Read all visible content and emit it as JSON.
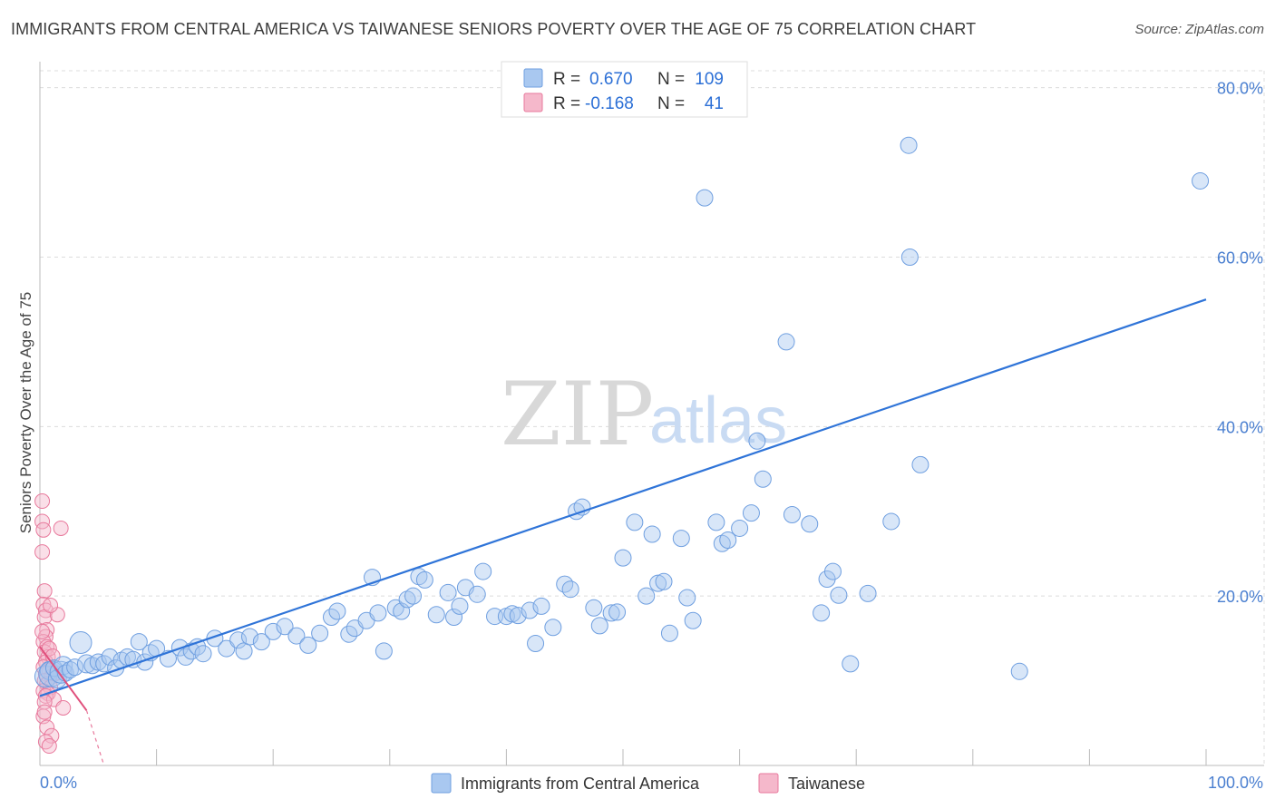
{
  "title": "IMMIGRANTS FROM CENTRAL AMERICA VS TAIWANESE SENIORS POVERTY OVER THE AGE OF 75 CORRELATION CHART",
  "source": "Source: ZipAtlas.com",
  "watermark": {
    "part1": "ZIP",
    "part2": "atlas"
  },
  "colors": {
    "blue_fill": "#a9c8f0",
    "blue_stroke": "#6f9fe0",
    "blue_line": "#2f74d8",
    "pink_fill": "#f5b8cb",
    "pink_stroke": "#e8799c",
    "pink_line": "#e0507c",
    "grid": "#dcdcdc",
    "axis_text": "#4a7fd0"
  },
  "legend": {
    "rows": [
      {
        "r_label": "R =",
        "r_value": "0.670",
        "n_label": "N =",
        "n_value": "109"
      },
      {
        "r_label": "R =",
        "r_value": "-0.168",
        "n_label": "N =",
        "n_value": "41"
      }
    ]
  },
  "chart_data": {
    "type": "scatter",
    "title": "IMMIGRANTS FROM CENTRAL AMERICA VS TAIWANESE SENIORS POVERTY OVER THE AGE OF 75 CORRELATION CHART",
    "xlabel": "",
    "ylabel": "Seniors Poverty Over the Age of 75",
    "xlim": [
      0,
      100
    ],
    "ylim": [
      0,
      82
    ],
    "x_tick_labels": [
      "0.0%",
      "100.0%"
    ],
    "y_ticks": [
      20,
      40,
      60,
      80
    ],
    "y_tick_labels": [
      "20.0%",
      "40.0%",
      "60.0%",
      "80.0%"
    ],
    "legend_position": "bottom-center",
    "series": [
      {
        "name": "Immigrants from Central America",
        "color": "blue",
        "r": 0.67,
        "n": 109,
        "trend": {
          "x": [
            0,
            100
          ],
          "y": [
            8.2,
            55.0
          ]
        },
        "points": [
          [
            0.5,
            10.5,
            12
          ],
          [
            0.8,
            11.2,
            10
          ],
          [
            1.0,
            10.8,
            14
          ],
          [
            1.2,
            11.5,
            9
          ],
          [
            1.5,
            10.2,
            10
          ],
          [
            1.8,
            11.0,
            12
          ],
          [
            2.0,
            11.8,
            10
          ],
          [
            2.2,
            10.9,
            9
          ],
          [
            2.6,
            11.3,
            9
          ],
          [
            3.0,
            11.6,
            9
          ],
          [
            3.5,
            14.5,
            12
          ],
          [
            4.0,
            12.0,
            10
          ],
          [
            4.5,
            11.8,
            9
          ],
          [
            5.0,
            12.2,
            9
          ],
          [
            5.5,
            12.0,
            9
          ],
          [
            6.0,
            12.8,
            9
          ],
          [
            6.5,
            11.5,
            9
          ],
          [
            7.0,
            12.4,
            9
          ],
          [
            7.5,
            12.8,
            9
          ],
          [
            8.0,
            12.5,
            9
          ],
          [
            8.5,
            14.6,
            9
          ],
          [
            9.0,
            12.2,
            9
          ],
          [
            9.5,
            13.3,
            9
          ],
          [
            10.0,
            13.8,
            9
          ],
          [
            11.0,
            12.6,
            9
          ],
          [
            12.0,
            13.9,
            9
          ],
          [
            12.5,
            12.8,
            9
          ],
          [
            13.0,
            13.5,
            9
          ],
          [
            13.5,
            14.0,
            9
          ],
          [
            14.0,
            13.2,
            9
          ],
          [
            15.0,
            15.0,
            9
          ],
          [
            16.0,
            13.8,
            9
          ],
          [
            17.0,
            14.8,
            9
          ],
          [
            17.5,
            13.5,
            9
          ],
          [
            18.0,
            15.2,
            9
          ],
          [
            19.0,
            14.6,
            9
          ],
          [
            20.0,
            15.8,
            9
          ],
          [
            21.0,
            16.4,
            9
          ],
          [
            22.0,
            15.3,
            9
          ],
          [
            23.0,
            14.2,
            9
          ],
          [
            24.0,
            15.6,
            9
          ],
          [
            25.0,
            17.5,
            9
          ],
          [
            25.5,
            18.2,
            9
          ],
          [
            26.5,
            15.5,
            9
          ],
          [
            27.0,
            16.2,
            9
          ],
          [
            28.0,
            17.1,
            9
          ],
          [
            28.5,
            22.2,
            9
          ],
          [
            29.0,
            18.0,
            9
          ],
          [
            29.5,
            13.5,
            9
          ],
          [
            30.5,
            18.6,
            9
          ],
          [
            31.0,
            18.2,
            9
          ],
          [
            31.5,
            19.6,
            9
          ],
          [
            32.0,
            20.0,
            9
          ],
          [
            32.5,
            22.3,
            9
          ],
          [
            33.0,
            21.9,
            9
          ],
          [
            34.0,
            17.8,
            9
          ],
          [
            35.0,
            20.4,
            9
          ],
          [
            35.5,
            17.5,
            9
          ],
          [
            36.0,
            18.8,
            9
          ],
          [
            36.5,
            21.0,
            9
          ],
          [
            37.5,
            20.2,
            9
          ],
          [
            38.0,
            22.9,
            9
          ],
          [
            39.0,
            17.6,
            9
          ],
          [
            40.0,
            17.6,
            9
          ],
          [
            40.5,
            17.9,
            9
          ],
          [
            41.0,
            17.7,
            9
          ],
          [
            42.0,
            18.3,
            9
          ],
          [
            42.5,
            14.4,
            9
          ],
          [
            43.0,
            18.8,
            9
          ],
          [
            44.0,
            16.3,
            9
          ],
          [
            45.0,
            21.4,
            9
          ],
          [
            45.5,
            20.8,
            9
          ],
          [
            46.0,
            30.0,
            9
          ],
          [
            46.5,
            30.5,
            9
          ],
          [
            47.5,
            18.6,
            9
          ],
          [
            48.0,
            16.5,
            9
          ],
          [
            49.0,
            18.0,
            9
          ],
          [
            49.5,
            18.1,
            9
          ],
          [
            50.0,
            24.5,
            9
          ],
          [
            51.0,
            28.7,
            9
          ],
          [
            52.0,
            20.0,
            9
          ],
          [
            52.5,
            27.3,
            9
          ],
          [
            53.0,
            21.5,
            9
          ],
          [
            53.5,
            21.7,
            9
          ],
          [
            54.0,
            15.6,
            9
          ],
          [
            55.0,
            26.8,
            9
          ],
          [
            55.5,
            19.8,
            9
          ],
          [
            56.0,
            17.1,
            9
          ],
          [
            57.0,
            67.0,
            9
          ],
          [
            58.0,
            28.7,
            9
          ],
          [
            58.5,
            26.2,
            9
          ],
          [
            59.0,
            26.6,
            9
          ],
          [
            60.0,
            28.0,
            9
          ],
          [
            61.0,
            29.8,
            9
          ],
          [
            61.5,
            38.3,
            9
          ],
          [
            62.0,
            33.8,
            9
          ],
          [
            64.0,
            50.0,
            9
          ],
          [
            64.5,
            29.6,
            9
          ],
          [
            66.0,
            28.5,
            9
          ],
          [
            67.0,
            18.0,
            9
          ],
          [
            67.5,
            22.0,
            9
          ],
          [
            68.0,
            22.9,
            9
          ],
          [
            68.5,
            20.1,
            9
          ],
          [
            69.5,
            12.0,
            9
          ],
          [
            71.0,
            20.3,
            9
          ],
          [
            73.0,
            28.8,
            9
          ],
          [
            74.5,
            73.2,
            9
          ],
          [
            74.6,
            60.0,
            9
          ],
          [
            75.5,
            35.5,
            9
          ],
          [
            84.0,
            11.1,
            9
          ],
          [
            99.5,
            69.0,
            9
          ]
        ]
      },
      {
        "name": "Taiwanese",
        "color": "pink",
        "r": -0.168,
        "n": 41,
        "trend": {
          "x": [
            0,
            4
          ],
          "y": [
            14.0,
            6.5
          ]
        },
        "trend_dashed": {
          "x": [
            4,
            5.5
          ],
          "y": [
            6.5,
            0
          ]
        },
        "points": [
          [
            0.2,
            31.2
          ],
          [
            0.2,
            28.8
          ],
          [
            0.2,
            25.2
          ],
          [
            0.3,
            27.8
          ],
          [
            1.8,
            28.0
          ],
          [
            0.4,
            20.6
          ],
          [
            0.3,
            19.0
          ],
          [
            0.5,
            18.3
          ],
          [
            0.4,
            17.5
          ],
          [
            0.6,
            16.0
          ],
          [
            0.5,
            15.2
          ],
          [
            0.3,
            14.6
          ],
          [
            0.6,
            14.0
          ],
          [
            0.4,
            13.4
          ],
          [
            0.7,
            12.8
          ],
          [
            0.5,
            12.2
          ],
          [
            0.3,
            11.6
          ],
          [
            0.8,
            11.2
          ],
          [
            0.5,
            10.8
          ],
          [
            1.0,
            10.5
          ],
          [
            0.4,
            10.0
          ],
          [
            0.6,
            9.6
          ],
          [
            0.9,
            9.2
          ],
          [
            0.3,
            8.8
          ],
          [
            0.7,
            8.5
          ],
          [
            0.5,
            8.2
          ],
          [
            1.2,
            7.8
          ],
          [
            0.4,
            7.5
          ],
          [
            0.8,
            13.8
          ],
          [
            1.5,
            17.8
          ],
          [
            2.0,
            6.8
          ],
          [
            0.3,
            5.8
          ],
          [
            0.6,
            4.5
          ],
          [
            1.0,
            3.5
          ],
          [
            0.5,
            2.8
          ],
          [
            0.8,
            2.3
          ],
          [
            1.1,
            12.9
          ],
          [
            1.4,
            10.9
          ],
          [
            0.2,
            15.8
          ],
          [
            0.9,
            18.9
          ],
          [
            0.4,
            6.3
          ]
        ]
      }
    ]
  }
}
